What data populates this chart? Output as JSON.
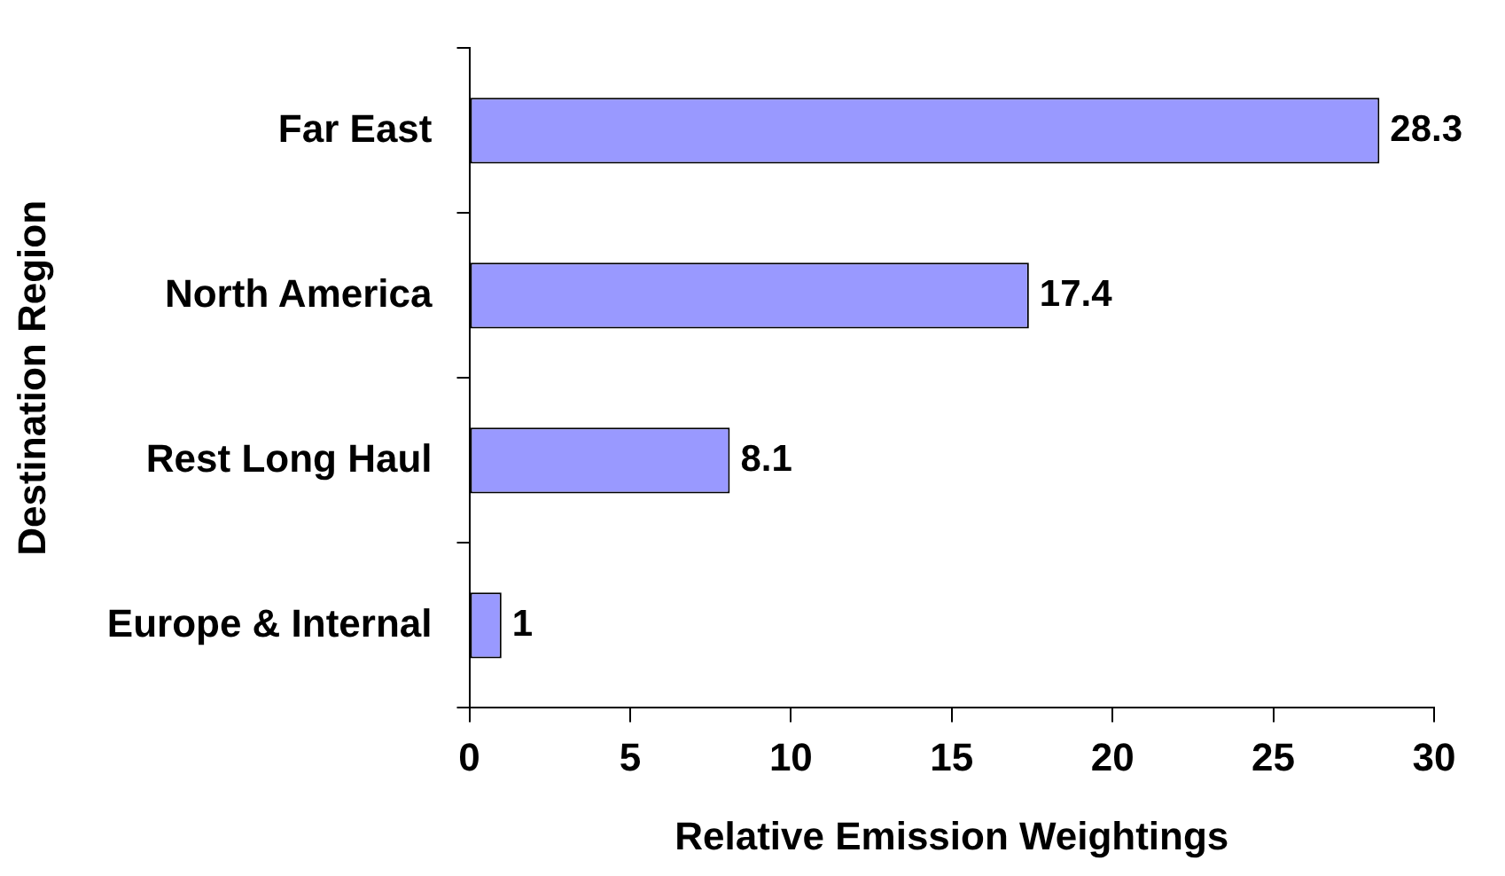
{
  "chart_data": {
    "type": "bar",
    "orientation": "horizontal",
    "xlabel": "Relative Emission Weightings",
    "ylabel": "Destination Region",
    "categories": [
      "Far East",
      "North America",
      "Rest Long Haul",
      "Europe & Internal"
    ],
    "values": [
      28.3,
      17.4,
      8.1,
      1
    ],
    "color": "#9999ff",
    "xlim": [
      0,
      30
    ],
    "xticks": [
      0,
      5,
      10,
      15,
      20,
      25,
      30
    ],
    "grid": false,
    "data_labels": true,
    "legend": false
  }
}
